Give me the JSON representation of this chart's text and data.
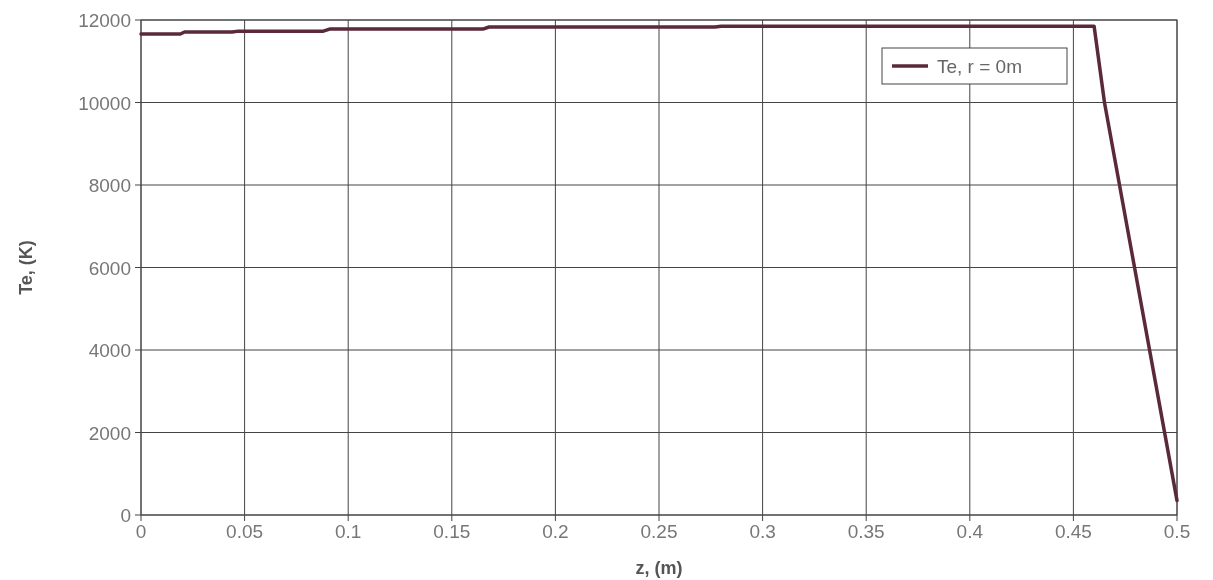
{
  "chart_data": {
    "type": "line",
    "xlabel": "z, (m)",
    "ylabel": "Te, (K)",
    "x": [
      0,
      0.019,
      0.021,
      0.044,
      0.047,
      0.088,
      0.091,
      0.165,
      0.168,
      0.277,
      0.28,
      0.46,
      0.465,
      0.5
    ],
    "series": [
      {
        "name": "Te, r = 0m",
        "color": "#5a2a3a",
        "values": [
          11660,
          11660,
          11710,
          11710,
          11730,
          11730,
          11780,
          11780,
          11830,
          11830,
          11850,
          11850,
          10000,
          350
        ]
      }
    ],
    "xlim": [
      0,
      0.5
    ],
    "xticks": [
      0,
      0.05,
      0.1,
      0.15,
      0.2,
      0.25,
      0.3,
      0.35,
      0.4,
      0.45,
      0.5
    ],
    "ylim": [
      0,
      12000
    ],
    "yticks": [
      0,
      2000,
      4000,
      6000,
      8000,
      10000,
      12000
    ],
    "grid": true,
    "legend": "top right",
    "marker": "none",
    "line_style": "solid"
  }
}
